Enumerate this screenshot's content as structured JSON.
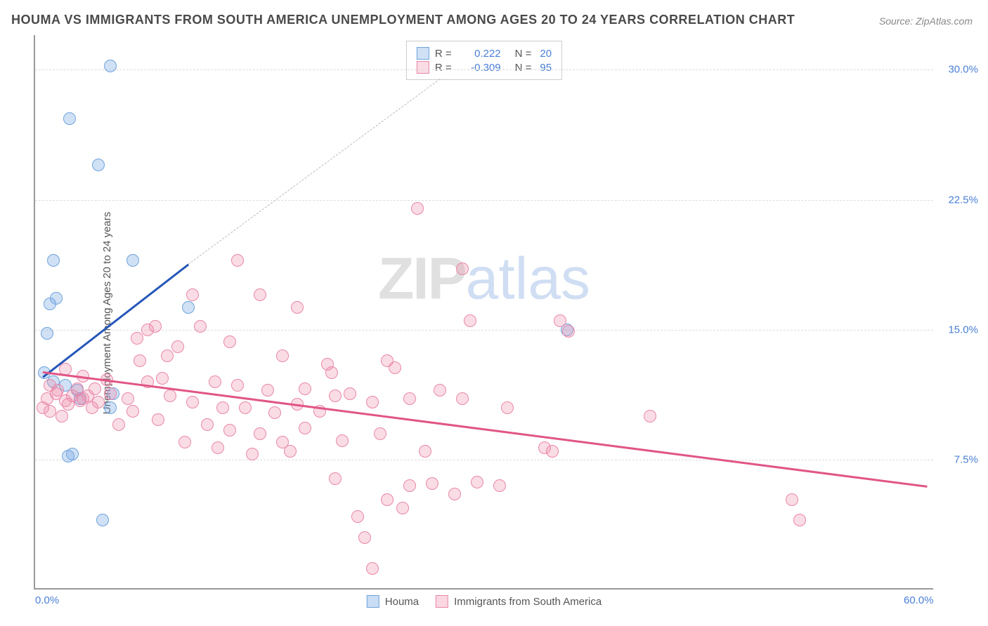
{
  "title": "HOUMA VS IMMIGRANTS FROM SOUTH AMERICA UNEMPLOYMENT AMONG AGES 20 TO 24 YEARS CORRELATION CHART",
  "source": "Source: ZipAtlas.com",
  "y_axis_label": "Unemployment Among Ages 20 to 24 years",
  "watermark": {
    "part1": "ZIP",
    "part2": "atlas"
  },
  "chart": {
    "type": "scatter",
    "xlim": [
      0,
      60
    ],
    "ylim": [
      0,
      32
    ],
    "x_ticks": [
      {
        "value": 0,
        "label": "0.0%"
      },
      {
        "value": 60,
        "label": "60.0%"
      }
    ],
    "y_ticks": [
      {
        "value": 7.5,
        "label": "7.5%"
      },
      {
        "value": 15.0,
        "label": "15.0%"
      },
      {
        "value": 22.5,
        "label": "22.5%"
      },
      {
        "value": 30.0,
        "label": "30.0%"
      }
    ],
    "grid_color": "#dddddd",
    "background_color": "#ffffff",
    "point_radius": 9,
    "point_stroke_width": 1.5,
    "series": [
      {
        "name": "Houma",
        "color_fill": "rgba(120,170,230,0.35)",
        "color_stroke": "#6fa3db",
        "stats": {
          "R": "0.222",
          "N": "20"
        },
        "trend": {
          "x1": 0.5,
          "y1": 12.3,
          "x2": 10.2,
          "y2": 18.8,
          "color": "#2456b8",
          "width": 2.5
        },
        "dashed_ext": {
          "x1": 10.2,
          "y1": 18.8,
          "x2": 27,
          "y2": 29.5
        },
        "points": [
          {
            "x": 5.0,
            "y": 30.2
          },
          {
            "x": 2.3,
            "y": 27.2
          },
          {
            "x": 4.2,
            "y": 24.5
          },
          {
            "x": 1.2,
            "y": 19.0
          },
          {
            "x": 1.4,
            "y": 16.8
          },
          {
            "x": 6.5,
            "y": 19.0
          },
          {
            "x": 1.0,
            "y": 16.5
          },
          {
            "x": 0.8,
            "y": 14.8
          },
          {
            "x": 10.2,
            "y": 16.3
          },
          {
            "x": 0.6,
            "y": 12.5
          },
          {
            "x": 1.2,
            "y": 12.0
          },
          {
            "x": 2.8,
            "y": 11.5
          },
          {
            "x": 5.2,
            "y": 11.3
          },
          {
            "x": 3.0,
            "y": 11.0
          },
          {
            "x": 5.0,
            "y": 10.5
          },
          {
            "x": 2.5,
            "y": 7.8
          },
          {
            "x": 2.2,
            "y": 7.7
          },
          {
            "x": 4.5,
            "y": 4.0
          },
          {
            "x": 35.5,
            "y": 15.0
          },
          {
            "x": 2.0,
            "y": 11.8
          }
        ]
      },
      {
        "name": "Immigrants from South America",
        "color_fill": "rgba(240,140,170,0.30)",
        "color_stroke": "#e987a9",
        "stats": {
          "R": "-0.309",
          "N": "95"
        },
        "trend": {
          "x1": 0.5,
          "y1": 12.6,
          "x2": 59.5,
          "y2": 6.0,
          "color": "#e15587",
          "width": 2.5
        },
        "points": [
          {
            "x": 25.5,
            "y": 22.0
          },
          {
            "x": 13.5,
            "y": 19.0
          },
          {
            "x": 28.5,
            "y": 18.5
          },
          {
            "x": 10.5,
            "y": 17.0
          },
          {
            "x": 15.0,
            "y": 17.0
          },
          {
            "x": 7.5,
            "y": 15.0
          },
          {
            "x": 17.5,
            "y": 16.3
          },
          {
            "x": 35.0,
            "y": 15.5
          },
          {
            "x": 29.0,
            "y": 15.5
          },
          {
            "x": 35.6,
            "y": 14.9
          },
          {
            "x": 11.0,
            "y": 15.2
          },
          {
            "x": 8.0,
            "y": 15.2
          },
          {
            "x": 9.5,
            "y": 14.0
          },
          {
            "x": 13.0,
            "y": 14.3
          },
          {
            "x": 7.0,
            "y": 13.2
          },
          {
            "x": 16.5,
            "y": 13.5
          },
          {
            "x": 19.5,
            "y": 13.0
          },
          {
            "x": 23.5,
            "y": 13.2
          },
          {
            "x": 24.0,
            "y": 12.8
          },
          {
            "x": 2.0,
            "y": 12.7
          },
          {
            "x": 3.2,
            "y": 12.3
          },
          {
            "x": 4.8,
            "y": 12.1
          },
          {
            "x": 7.5,
            "y": 12.0
          },
          {
            "x": 8.5,
            "y": 12.2
          },
          {
            "x": 12.0,
            "y": 12.0
          },
          {
            "x": 13.5,
            "y": 11.8
          },
          {
            "x": 15.5,
            "y": 11.5
          },
          {
            "x": 18.0,
            "y": 11.6
          },
          {
            "x": 20.0,
            "y": 11.2
          },
          {
            "x": 1.5,
            "y": 11.5
          },
          {
            "x": 2.8,
            "y": 11.6
          },
          {
            "x": 3.5,
            "y": 11.2
          },
          {
            "x": 5.0,
            "y": 11.3
          },
          {
            "x": 6.2,
            "y": 11.0
          },
          {
            "x": 9.0,
            "y": 11.2
          },
          {
            "x": 10.5,
            "y": 10.8
          },
          {
            "x": 12.5,
            "y": 10.5
          },
          {
            "x": 14.0,
            "y": 10.5
          },
          {
            "x": 16.0,
            "y": 10.2
          },
          {
            "x": 17.5,
            "y": 10.7
          },
          {
            "x": 19.0,
            "y": 10.3
          },
          {
            "x": 21.0,
            "y": 11.3
          },
          {
            "x": 22.5,
            "y": 10.8
          },
          {
            "x": 25.0,
            "y": 11.0
          },
          {
            "x": 27.0,
            "y": 11.5
          },
          {
            "x": 28.5,
            "y": 11.0
          },
          {
            "x": 2.2,
            "y": 10.7
          },
          {
            "x": 3.8,
            "y": 10.5
          },
          {
            "x": 1.0,
            "y": 10.3
          },
          {
            "x": 1.8,
            "y": 10.0
          },
          {
            "x": 0.8,
            "y": 11.0
          },
          {
            "x": 0.5,
            "y": 10.5
          },
          {
            "x": 4.2,
            "y": 10.8
          },
          {
            "x": 6.5,
            "y": 10.3
          },
          {
            "x": 8.2,
            "y": 9.8
          },
          {
            "x": 11.5,
            "y": 9.5
          },
          {
            "x": 13.0,
            "y": 9.2
          },
          {
            "x": 15.0,
            "y": 9.0
          },
          {
            "x": 18.0,
            "y": 9.3
          },
          {
            "x": 20.5,
            "y": 8.6
          },
          {
            "x": 23.0,
            "y": 9.0
          },
          {
            "x": 16.5,
            "y": 8.5
          },
          {
            "x": 10.0,
            "y": 8.5
          },
          {
            "x": 12.2,
            "y": 8.2
          },
          {
            "x": 14.5,
            "y": 7.8
          },
          {
            "x": 34.0,
            "y": 8.2
          },
          {
            "x": 41.0,
            "y": 10.0
          },
          {
            "x": 31.5,
            "y": 10.5
          },
          {
            "x": 2.5,
            "y": 11.2
          },
          {
            "x": 1.4,
            "y": 11.3
          },
          {
            "x": 3.0,
            "y": 10.9
          },
          {
            "x": 29.5,
            "y": 6.2
          },
          {
            "x": 25.0,
            "y": 6.0
          },
          {
            "x": 26.5,
            "y": 6.1
          },
          {
            "x": 23.5,
            "y": 5.2
          },
          {
            "x": 24.5,
            "y": 4.7
          },
          {
            "x": 28.0,
            "y": 5.5
          },
          {
            "x": 31.0,
            "y": 6.0
          },
          {
            "x": 20.0,
            "y": 6.4
          },
          {
            "x": 21.5,
            "y": 4.2
          },
          {
            "x": 22.0,
            "y": 3.0
          },
          {
            "x": 22.5,
            "y": 1.2
          },
          {
            "x": 50.5,
            "y": 5.2
          },
          {
            "x": 51.0,
            "y": 4.0
          },
          {
            "x": 26.0,
            "y": 8.0
          },
          {
            "x": 8.8,
            "y": 13.5
          },
          {
            "x": 5.6,
            "y": 9.5
          },
          {
            "x": 19.8,
            "y": 12.5
          },
          {
            "x": 34.5,
            "y": 8.0
          },
          {
            "x": 1.0,
            "y": 11.8
          },
          {
            "x": 2.0,
            "y": 10.9
          },
          {
            "x": 6.8,
            "y": 14.5
          },
          {
            "x": 4.0,
            "y": 11.6
          },
          {
            "x": 3.2,
            "y": 11.0
          },
          {
            "x": 17.0,
            "y": 8.0
          }
        ]
      }
    ],
    "legend_bottom": [
      {
        "label": "Houma",
        "swatch_fill": "rgba(120,170,230,0.4)",
        "swatch_stroke": "#6fa3db"
      },
      {
        "label": "Immigrants from South America",
        "swatch_fill": "rgba(240,140,170,0.35)",
        "swatch_stroke": "#e987a9"
      }
    ],
    "stats_box_labels": {
      "R": "R =",
      "N": "N ="
    }
  }
}
